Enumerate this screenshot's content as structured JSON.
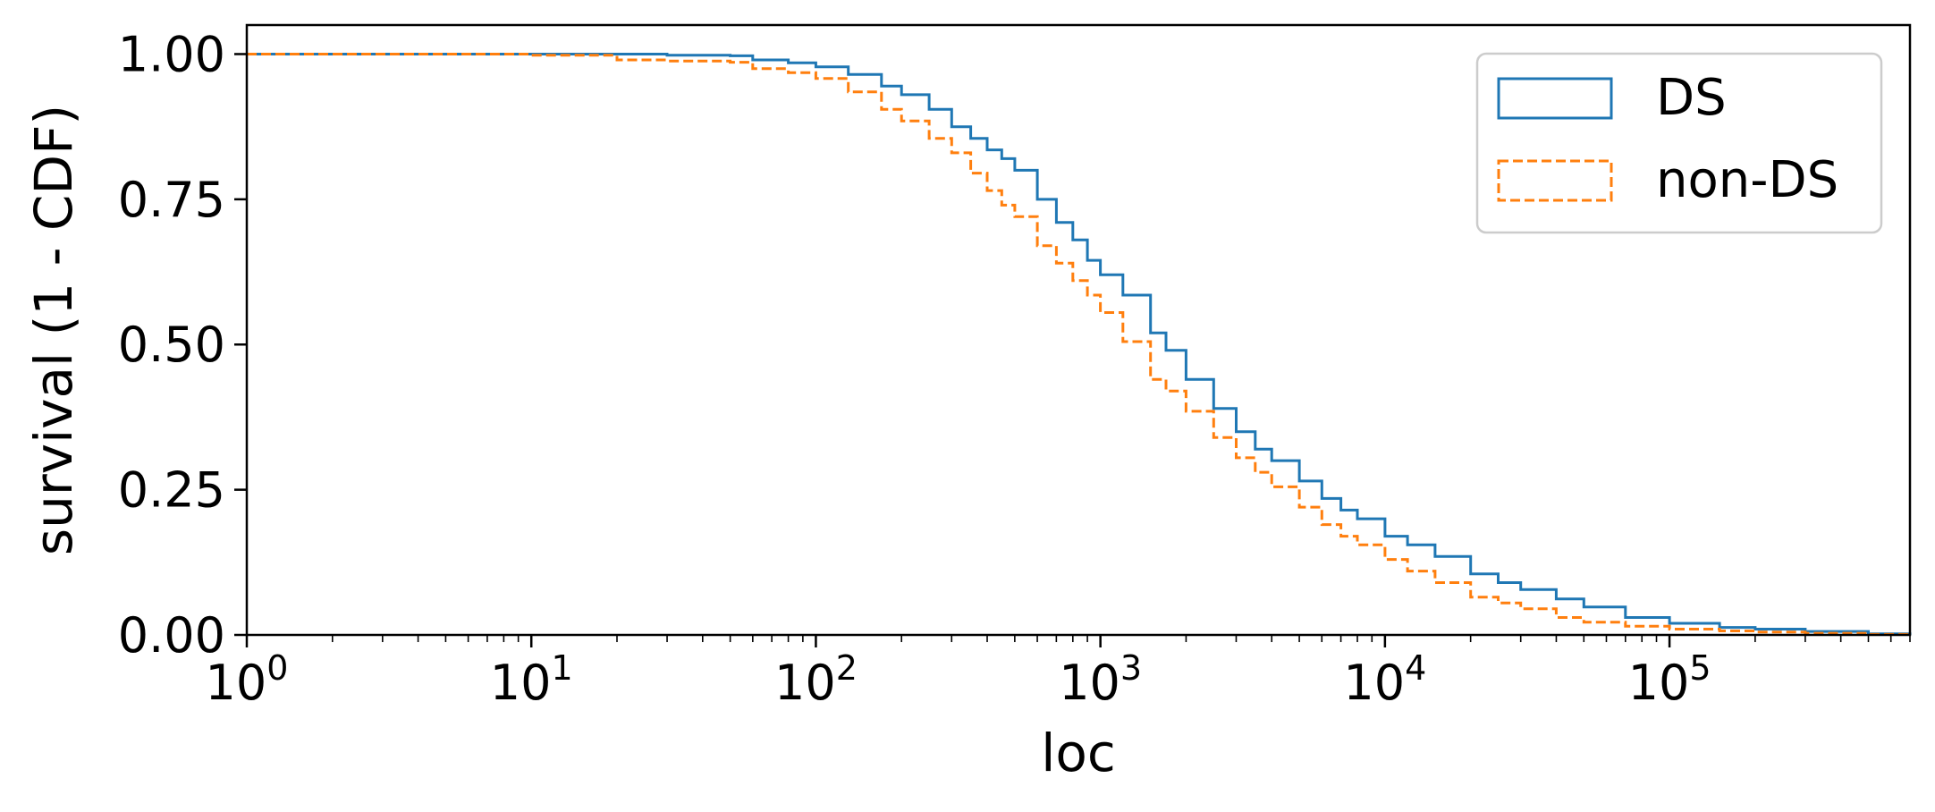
{
  "chart_data": {
    "type": "line",
    "title": "",
    "xlabel": "loc",
    "ylabel": "survival (1 - CDF)",
    "xscale": "log",
    "xlim": [
      1,
      700000
    ],
    "ylim": [
      0,
      1.05
    ],
    "grid": false,
    "legend_position": "top-right",
    "x_ticks": [
      {
        "value": 1,
        "base": "10",
        "exp": "0"
      },
      {
        "value": 10,
        "base": "10",
        "exp": "1"
      },
      {
        "value": 100,
        "base": "10",
        "exp": "2"
      },
      {
        "value": 1000,
        "base": "10",
        "exp": "3"
      },
      {
        "value": 10000,
        "base": "10",
        "exp": "4"
      },
      {
        "value": 100000,
        "base": "10",
        "exp": "5"
      }
    ],
    "y_ticks": [
      {
        "value": 0.0,
        "label": "0.00"
      },
      {
        "value": 0.25,
        "label": "0.25"
      },
      {
        "value": 0.5,
        "label": "0.50"
      },
      {
        "value": 0.75,
        "label": "0.75"
      },
      {
        "value": 1.0,
        "label": "1.00"
      }
    ],
    "series": [
      {
        "name": "DS",
        "color": "#1f77b4",
        "dash": "solid",
        "x": [
          1,
          10,
          30,
          50,
          60,
          80,
          100,
          130,
          170,
          200,
          250,
          300,
          350,
          400,
          450,
          500,
          600,
          700,
          800,
          900,
          1000,
          1200,
          1500,
          1700,
          2000,
          2500,
          3000,
          3500,
          4000,
          5000,
          6000,
          7000,
          8000,
          10000,
          12000,
          15000,
          20000,
          25000,
          30000,
          40000,
          50000,
          70000,
          100000,
          150000,
          200000,
          300000,
          500000,
          700000
        ],
        "y": [
          1.0,
          1.0,
          0.998,
          0.997,
          0.99,
          0.985,
          0.978,
          0.965,
          0.945,
          0.93,
          0.905,
          0.875,
          0.855,
          0.835,
          0.82,
          0.8,
          0.75,
          0.71,
          0.68,
          0.645,
          0.62,
          0.585,
          0.52,
          0.49,
          0.44,
          0.39,
          0.35,
          0.32,
          0.3,
          0.265,
          0.235,
          0.215,
          0.2,
          0.17,
          0.155,
          0.135,
          0.105,
          0.09,
          0.078,
          0.062,
          0.048,
          0.03,
          0.02,
          0.013,
          0.01,
          0.006,
          0.002,
          0.0
        ]
      },
      {
        "name": "non-DS",
        "color": "#ff7f0e",
        "dash": "dashed",
        "x": [
          1,
          10,
          20,
          30,
          50,
          60,
          80,
          100,
          130,
          170,
          200,
          250,
          300,
          350,
          400,
          450,
          500,
          600,
          700,
          800,
          900,
          1000,
          1200,
          1500,
          1700,
          2000,
          2500,
          3000,
          3500,
          4000,
          5000,
          6000,
          7000,
          8000,
          10000,
          12000,
          15000,
          20000,
          25000,
          30000,
          40000,
          50000,
          70000,
          100000,
          150000,
          200000,
          300000,
          500000,
          700000
        ],
        "y": [
          1.0,
          0.998,
          0.99,
          0.988,
          0.986,
          0.975,
          0.968,
          0.958,
          0.935,
          0.905,
          0.885,
          0.855,
          0.83,
          0.795,
          0.765,
          0.74,
          0.72,
          0.67,
          0.64,
          0.61,
          0.585,
          0.555,
          0.505,
          0.44,
          0.42,
          0.385,
          0.34,
          0.305,
          0.28,
          0.255,
          0.22,
          0.19,
          0.17,
          0.155,
          0.13,
          0.11,
          0.09,
          0.065,
          0.055,
          0.045,
          0.03,
          0.022,
          0.015,
          0.01,
          0.007,
          0.005,
          0.003,
          0.001,
          0.0
        ]
      }
    ]
  }
}
